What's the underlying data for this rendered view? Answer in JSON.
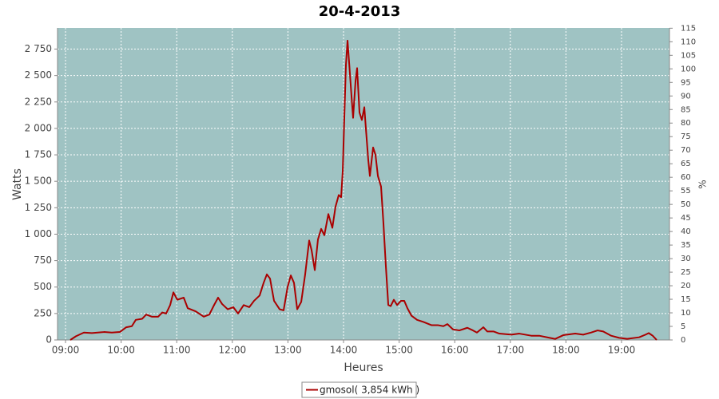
{
  "chart_data": {
    "type": "line",
    "title": "20-4-2013",
    "x_label": "Heures",
    "y_label": "Watts",
    "y2_label": "%",
    "xlim": [
      8.856,
      19.862
    ],
    "xticks": [
      {
        "value": 9,
        "label": "09:00"
      },
      {
        "value": 10,
        "label": "10:00"
      },
      {
        "value": 11,
        "label": "11:00"
      },
      {
        "value": 12,
        "label": "12:00"
      },
      {
        "value": 13,
        "label": "13:00"
      },
      {
        "value": 14,
        "label": "14:00"
      },
      {
        "value": 15,
        "label": "15:00"
      },
      {
        "value": 16,
        "label": "16:00"
      },
      {
        "value": 17,
        "label": "17:00"
      },
      {
        "value": 18,
        "label": "18:00"
      },
      {
        "value": 19,
        "label": "19:00"
      }
    ],
    "ylim": [
      0,
      2950
    ],
    "yticks": [
      0,
      250,
      500,
      750,
      {
        "value": 1000,
        "label": "1 000"
      },
      {
        "value": 1250,
        "label": "1 250"
      },
      {
        "value": 1500,
        "label": "1 500"
      },
      {
        "value": 1750,
        "label": "1 750"
      },
      {
        "value": 2000,
        "label": "2 000"
      },
      {
        "value": 2250,
        "label": "2 250"
      },
      {
        "value": 2500,
        "label": "2 500"
      },
      {
        "value": 2750,
        "label": "2 750"
      }
    ],
    "y2lim": [
      0,
      115.1
    ],
    "y2ticks": [
      0,
      5,
      10,
      15,
      20,
      25,
      30,
      35,
      40,
      45,
      50,
      55,
      60,
      65,
      70,
      75,
      80,
      85,
      90,
      95,
      100,
      105,
      110,
      115
    ],
    "grid": true,
    "background": "#9fc3c3",
    "x": [
      9.086,
      9.187,
      9.33,
      9.474,
      9.69,
      9.833,
      9.977,
      10.092,
      10.193,
      10.264,
      10.379,
      10.451,
      10.552,
      10.667,
      10.739,
      10.81,
      10.882,
      10.94,
      11.011,
      11.126,
      11.198,
      11.342,
      11.486,
      11.586,
      11.672,
      11.744,
      11.816,
      11.917,
      12.017,
      12.103,
      12.204,
      12.305,
      12.391,
      12.491,
      12.563,
      12.621,
      12.678,
      12.75,
      12.851,
      12.922,
      12.994,
      13.052,
      13.109,
      13.167,
      13.239,
      13.31,
      13.382,
      13.425,
      13.483,
      13.54,
      13.598,
      13.655,
      13.727,
      13.799,
      13.856,
      13.914,
      13.957,
      13.986,
      14.014,
      14.043,
      14.072,
      14.101,
      14.144,
      14.172,
      14.216,
      14.244,
      14.287,
      14.33,
      14.374,
      14.402,
      14.445,
      14.474,
      14.532,
      14.575,
      14.618,
      14.675,
      14.718,
      14.761,
      14.805,
      14.848,
      14.905,
      14.963,
      15.034,
      15.092,
      15.149,
      15.221,
      15.322,
      15.437,
      15.58,
      15.695,
      15.796,
      15.868,
      15.968,
      16.083,
      16.227,
      16.328,
      16.399,
      16.514,
      16.586,
      16.701,
      16.802,
      17.017,
      17.161,
      17.376,
      17.52,
      17.707,
      17.807,
      17.951,
      18.167,
      18.31,
      18.454,
      18.569,
      18.67,
      18.813,
      18.957,
      19.101,
      19.316,
      19.431,
      19.489,
      19.56,
      19.632
    ],
    "series": [
      {
        "name": "gmosol( 3,854 kWh )",
        "color": "#aa0000",
        "values": [
          0,
          35,
          70,
          65,
          75,
          70,
          75,
          120,
          130,
          190,
          200,
          240,
          220,
          220,
          260,
          250,
          330,
          450,
          380,
          400,
          300,
          270,
          220,
          240,
          330,
          400,
          340,
          290,
          310,
          250,
          330,
          310,
          370,
          420,
          540,
          620,
          580,
          370,
          290,
          280,
          500,
          610,
          540,
          290,
          360,
          620,
          940,
          850,
          660,
          950,
          1050,
          990,
          1190,
          1060,
          1260,
          1370,
          1350,
          1600,
          2100,
          2600,
          2830,
          2620,
          2300,
          2100,
          2450,
          2570,
          2150,
          2080,
          2200,
          2000,
          1700,
          1550,
          1820,
          1750,
          1550,
          1450,
          1100,
          700,
          330,
          320,
          380,
          330,
          370,
          370,
          300,
          230,
          190,
          170,
          140,
          140,
          130,
          150,
          100,
          90,
          115,
          90,
          70,
          120,
          80,
          80,
          60,
          50,
          60,
          40,
          40,
          20,
          10,
          45,
          60,
          50,
          70,
          90,
          80,
          40,
          20,
          10,
          25,
          50,
          65,
          40,
          0
        ]
      }
    ]
  }
}
